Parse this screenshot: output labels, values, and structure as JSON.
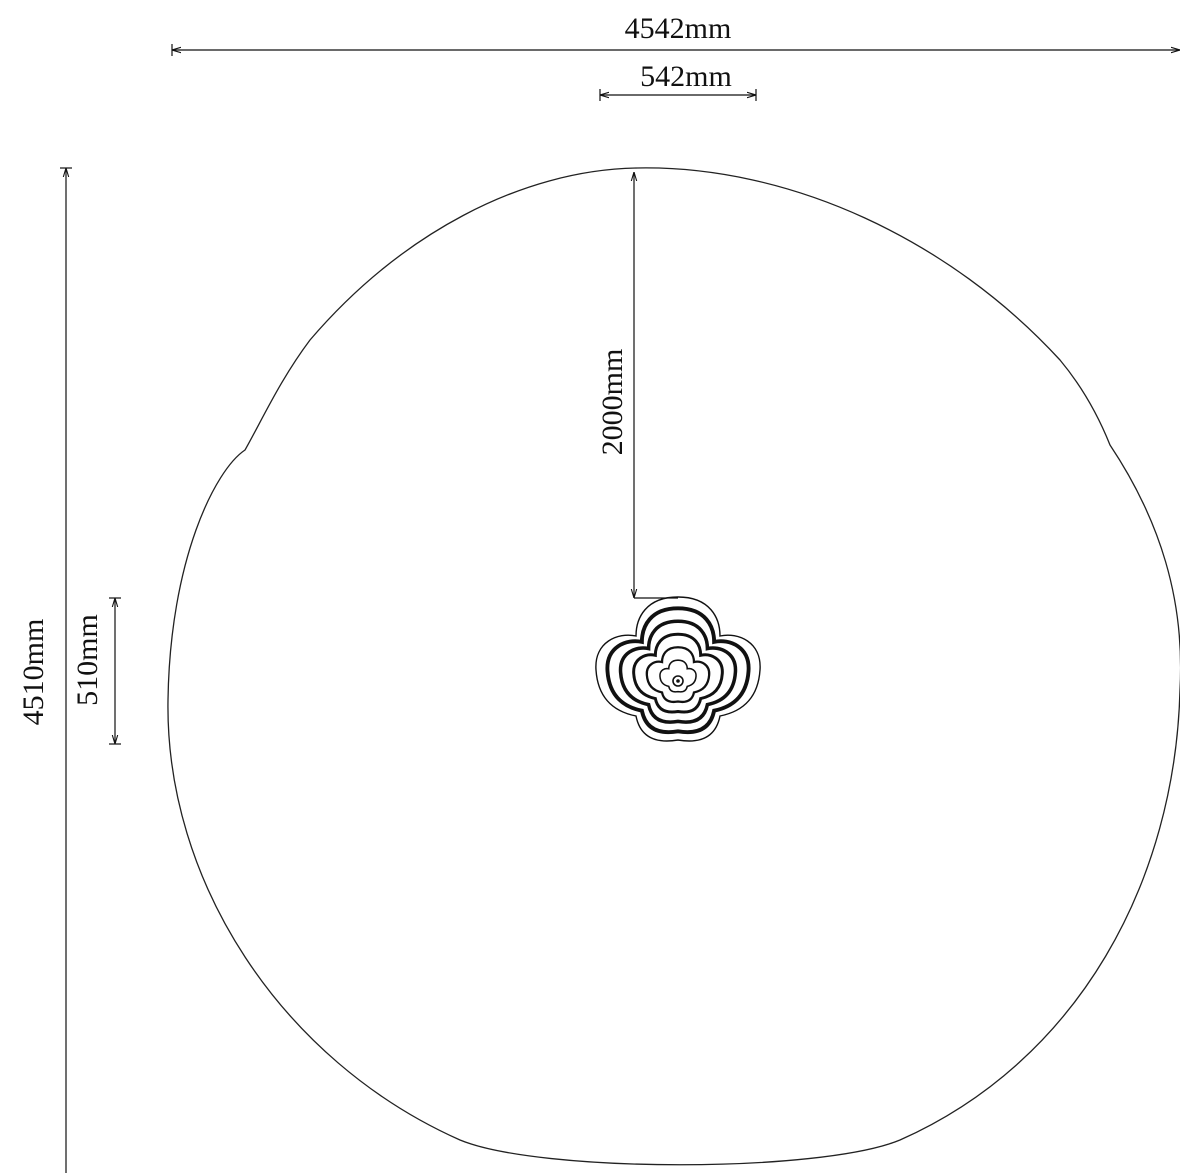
{
  "diagram": {
    "dimensions": {
      "overall_width": "4542mm",
      "element_width": "542mm",
      "overall_height": "4510mm",
      "element_height": "510mm",
      "clearance_radius": "2000mm"
    },
    "colors": {
      "background": "#ffffff",
      "line": "#111111"
    }
  }
}
